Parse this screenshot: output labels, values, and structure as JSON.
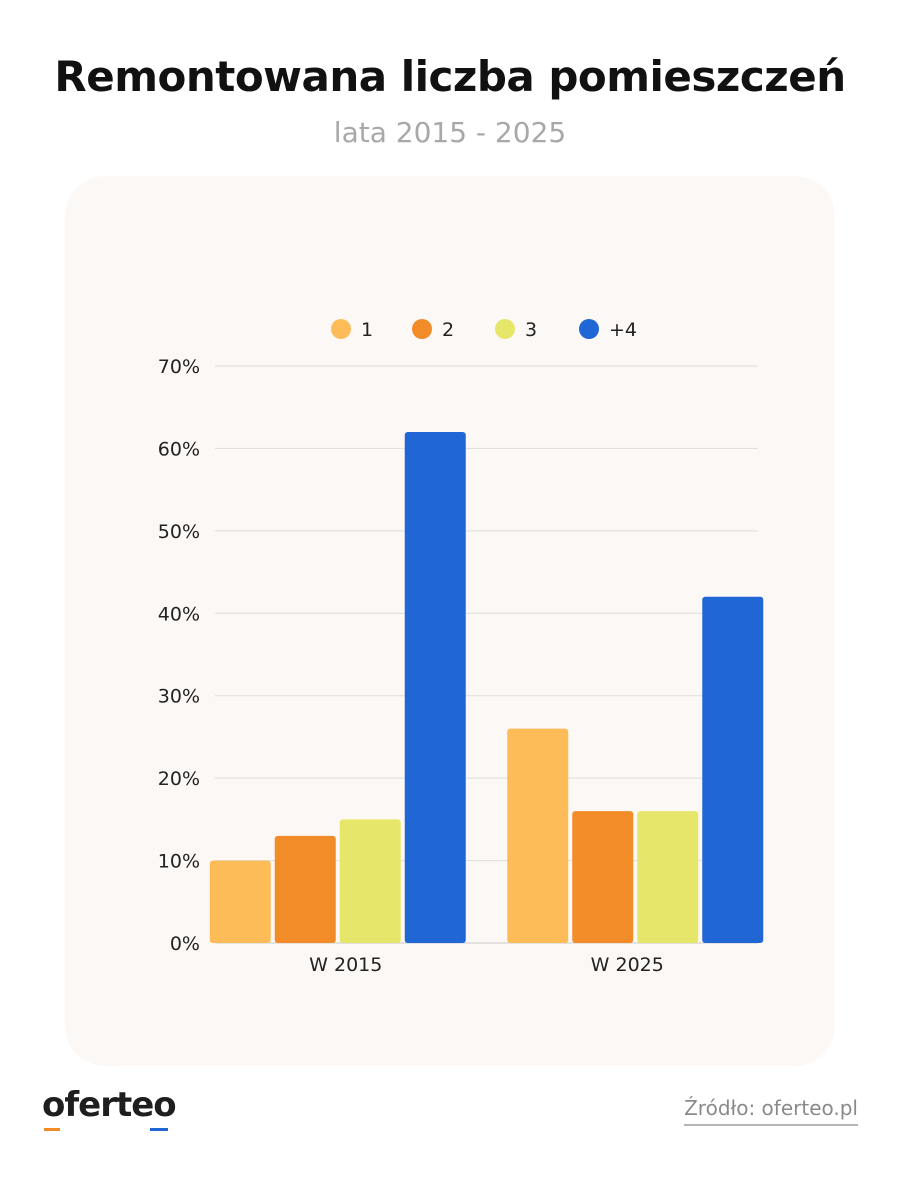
{
  "header": {
    "title": "Remontowana liczba pomieszczeń",
    "subtitle": "lata 2015 - 2025"
  },
  "footer": {
    "logo_text": "oferteo",
    "source": "Źródło: oferteo.pl"
  },
  "colors": {
    "series_1": "#fdbc58",
    "series_2": "#f28c28",
    "series_3": "#e6e66a",
    "series_4": "#2066d4",
    "card_bg": "#fcf8f5",
    "grid": "#dddddd"
  },
  "chart_data": {
    "type": "bar",
    "categories": [
      "W 2015",
      "W 2025"
    ],
    "series": [
      {
        "name": "1",
        "values": [
          10,
          26
        ]
      },
      {
        "name": "2",
        "values": [
          13,
          16
        ]
      },
      {
        "name": "3",
        "values": [
          15,
          16
        ]
      },
      {
        "name": "+4",
        "values": [
          62,
          42
        ]
      }
    ],
    "yticks": [
      "0%",
      "10%",
      "20%",
      "30%",
      "40%",
      "50%",
      "60%",
      "70%"
    ],
    "ylim": [
      0,
      70
    ],
    "grid": true,
    "legend_position": "top-center"
  }
}
